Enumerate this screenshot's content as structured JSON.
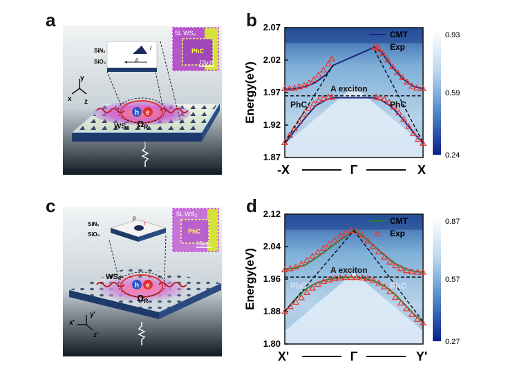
{
  "panels": {
    "a": {
      "letter": "a",
      "labels": {
        "sin": "SiNₓ",
        "sio": "SiO₂",
        "p": "p",
        "l": "l",
        "layer": "5L WS₂",
        "phc": "PhC",
        "scale": "15μm",
        "ax_y": "y",
        "ax_x": "x",
        "ax_z": "z",
        "h": "h",
        "e": "e",
        "omega": "Ω",
        "omega_sub": "R",
        "ws2": "WS₂"
      }
    },
    "b": {
      "letter": "b"
    },
    "c": {
      "letter": "c",
      "labels": {
        "sin": "SiNₓ",
        "sio": "SiO₂",
        "p": "p",
        "r": "r",
        "layer": "5L WS₂",
        "phc": "PhC",
        "scale": "15μm",
        "ax_y": "y'",
        "ax_x": "x'",
        "ax_z": "z'",
        "h": "h",
        "e": "e",
        "omega": "Ω",
        "omega_sub": "R",
        "ws2": "WS₂"
      }
    },
    "d": {
      "letter": "d"
    }
  },
  "chart_data": [
    {
      "type": "heatmap",
      "panel": "b",
      "ylabel": "Energy(eV)",
      "ylim": [
        1.87,
        2.07
      ],
      "yticks": [
        "2.07",
        "2.02",
        "1.97",
        "1.92",
        "1.87"
      ],
      "ytick_values": [
        2.07,
        2.02,
        1.97,
        1.92,
        1.87
      ],
      "xticks": [
        "-X",
        "Γ",
        "X"
      ],
      "colorbar": {
        "min": 0.24,
        "max": 0.93,
        "ticks": [
          "0.93",
          "0.59",
          "0.24"
        ],
        "colors": [
          "#0a1f8f",
          "#4f86c6",
          "#bcd8ee",
          "#ffffff"
        ]
      },
      "legend": {
        "position": "top-right",
        "items": [
          "CMT",
          "Exp"
        ]
      },
      "annotations": [
        "A exciton",
        "PhC",
        "PhC"
      ],
      "exciton_energy": 1.965,
      "series": [
        {
          "name": "CMT",
          "color": "#1a237e",
          "branch": "upper",
          "x": [
            -1,
            -0.85,
            -0.7,
            -0.55,
            -0.4,
            -0.3,
            0.3,
            0.4,
            0.55,
            0.7,
            0.85,
            1
          ],
          "y": [
            1.975,
            1.976,
            1.979,
            1.986,
            1.998,
            2.012,
            2.04,
            2.032,
            2.01,
            1.992,
            1.98,
            1.976
          ]
        },
        {
          "name": "CMT",
          "color": "#1a237e",
          "branch": "lower",
          "x": [
            -1,
            -0.85,
            -0.7,
            -0.55,
            -0.4,
            -0.3,
            0.3,
            0.4,
            0.55,
            0.7,
            0.85,
            1
          ],
          "y": [
            1.892,
            1.912,
            1.932,
            1.95,
            1.959,
            1.962,
            1.962,
            1.958,
            1.948,
            1.93,
            1.91,
            1.892
          ]
        },
        {
          "name": "Exp",
          "color": "#e53935",
          "marker": "triangle",
          "x": [
            -1,
            -0.93,
            -0.86,
            -0.79,
            -0.72,
            -0.65,
            -0.58,
            -0.51,
            -0.44,
            -0.37,
            -0.32,
            0.3,
            0.35,
            0.42,
            0.49,
            0.56,
            0.63,
            0.7,
            0.77,
            0.84,
            0.91,
            1
          ],
          "y": [
            1.976,
            1.976,
            1.977,
            1.979,
            1.981,
            1.985,
            1.99,
            1.997,
            2.005,
            2.014,
            2.022,
            2.04,
            2.037,
            2.03,
            2.02,
            2.01,
            2.001,
            1.993,
            1.986,
            1.98,
            1.977,
            1.976
          ]
        },
        {
          "name": "Exp",
          "color": "#e53935",
          "marker": "triangle",
          "x": [
            -1,
            -0.93,
            -0.86,
            -0.79,
            -0.72,
            -0.65,
            -0.58,
            -0.51,
            -0.44,
            -0.37,
            -0.32,
            0.32,
            0.37,
            0.44,
            0.51,
            0.58,
            0.65,
            0.72,
            0.79,
            0.86,
            0.93,
            1
          ],
          "y": [
            1.893,
            1.904,
            1.915,
            1.926,
            1.937,
            1.946,
            1.953,
            1.958,
            1.961,
            1.963,
            1.963,
            1.963,
            1.962,
            1.96,
            1.955,
            1.948,
            1.939,
            1.929,
            1.918,
            1.907,
            1.898,
            1.892
          ]
        },
        {
          "name": "PhC",
          "style": "dashed",
          "x": [
            -1,
            -0.3
          ],
          "y": [
            1.893,
            2.012
          ]
        },
        {
          "name": "PhC",
          "style": "dashed",
          "x": [
            0.3,
            1
          ],
          "y": [
            2.035,
            1.893
          ]
        }
      ]
    },
    {
      "type": "heatmap",
      "panel": "d",
      "ylabel": "Energy(eV)",
      "ylim": [
        1.8,
        2.12
      ],
      "yticks": [
        "2.12",
        "2.04",
        "1.96",
        "1.88",
        "1.80"
      ],
      "ytick_values": [
        2.12,
        2.04,
        1.96,
        1.88,
        1.8
      ],
      "xticks": [
        "X'",
        "Γ",
        "Y'"
      ],
      "colorbar": {
        "min": 0.27,
        "max": 0.87,
        "ticks": [
          "0.87",
          "0.57",
          "0.27"
        ],
        "colors": [
          "#0a1f8f",
          "#4f86c6",
          "#bcd8ee",
          "#ffffff"
        ]
      },
      "legend": {
        "position": "top-right",
        "items": [
          "CMT",
          "Exp"
        ]
      },
      "annotations": [
        "A exciton",
        "PhC",
        "PhC"
      ],
      "exciton_energy": 1.965,
      "series": [
        {
          "name": "CMT",
          "color": "#2e7d32",
          "branch": "upper",
          "x": [
            -1,
            -0.85,
            -0.7,
            -0.55,
            -0.4,
            -0.25,
            -0.1,
            0,
            0.15,
            0.3,
            0.45,
            0.6,
            0.75,
            0.9,
            1
          ],
          "y": [
            1.985,
            1.987,
            1.995,
            2.012,
            2.03,
            2.05,
            2.068,
            2.08,
            2.063,
            2.04,
            2.018,
            1.998,
            1.985,
            1.978,
            1.977
          ]
        },
        {
          "name": "CMT",
          "color": "#2e7d32",
          "branch": "lower",
          "x": [
            -1,
            -0.85,
            -0.7,
            -0.55,
            -0.4,
            -0.25,
            -0.1,
            0,
            0.15,
            0.3,
            0.45,
            0.6,
            0.75,
            0.9,
            1
          ],
          "y": [
            1.88,
            1.91,
            1.935,
            1.95,
            1.958,
            1.962,
            1.964,
            1.964,
            1.962,
            1.955,
            1.942,
            1.922,
            1.895,
            1.868,
            1.855
          ]
        },
        {
          "name": "Exp",
          "color": "#e53935",
          "marker": "triangle",
          "x": [
            -1,
            -0.92,
            -0.84,
            -0.76,
            -0.68,
            -0.6,
            -0.52,
            -0.44,
            -0.36,
            -0.28,
            -0.2,
            -0.12,
            -0.04,
            0.04,
            0.12,
            0.2,
            0.28,
            0.36,
            0.44,
            0.52,
            0.6,
            0.68,
            0.76,
            0.84,
            0.92,
            1
          ],
          "y": [
            1.983,
            1.986,
            1.99,
            1.997,
            2.006,
            2.016,
            2.026,
            2.036,
            2.046,
            2.056,
            2.066,
            2.074,
            2.08,
            2.078,
            2.068,
            2.054,
            2.04,
            2.027,
            2.014,
            2.002,
            1.993,
            1.986,
            1.981,
            1.978,
            1.977,
            1.977
          ]
        },
        {
          "name": "Exp",
          "color": "#e53935",
          "marker": "triangle",
          "x": [
            -1,
            -0.92,
            -0.84,
            -0.76,
            -0.68,
            -0.6,
            -0.52,
            -0.44,
            -0.36,
            -0.28,
            -0.2,
            -0.12,
            -0.04,
            0.04,
            0.12,
            0.2,
            0.28,
            0.36,
            0.44,
            0.52,
            0.6,
            0.68,
            0.76,
            0.84,
            0.92,
            1
          ],
          "y": [
            1.88,
            1.892,
            1.903,
            1.914,
            1.927,
            1.938,
            1.947,
            1.954,
            1.958,
            1.961,
            1.963,
            1.964,
            1.964,
            1.964,
            1.963,
            1.961,
            1.957,
            1.95,
            1.941,
            1.929,
            1.915,
            1.901,
            1.887,
            1.873,
            1.861,
            1.852
          ]
        },
        {
          "name": "PhC",
          "style": "dashed",
          "x": [
            -1,
            0
          ],
          "y": [
            1.88,
            2.08
          ]
        },
        {
          "name": "PhC",
          "style": "dashed",
          "x": [
            0,
            1
          ],
          "y": [
            2.08,
            1.855
          ]
        }
      ]
    }
  ]
}
